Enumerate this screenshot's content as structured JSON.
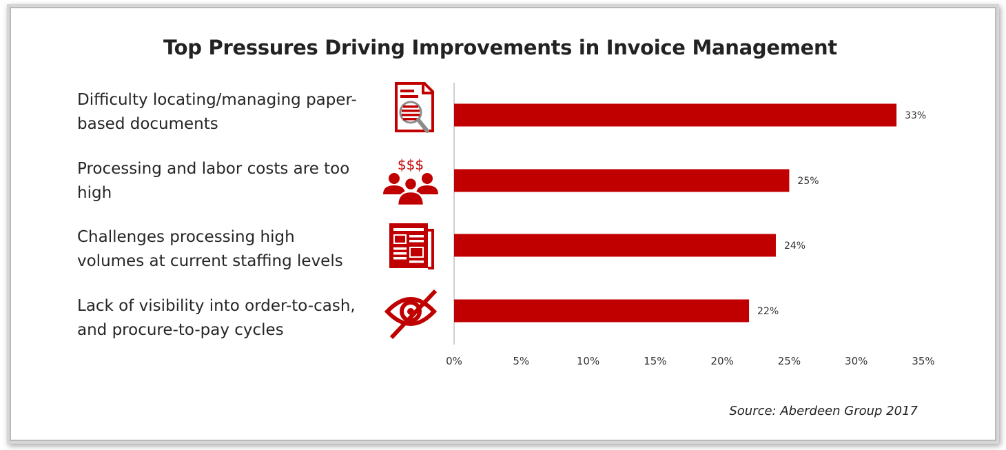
{
  "colors": {
    "bar": "#c00000",
    "icon": "#c00000",
    "axis": "#d0d0d0",
    "text": "#262626"
  },
  "icons": [
    "document-search-icon",
    "people-cost-icon",
    "newspaper-icon",
    "eye-slash-icon"
  ],
  "source": "Source: Aberdeen Group 2017",
  "chart_data": {
    "type": "bar",
    "orientation": "horizontal",
    "title": "Top Pressures Driving Improvements in Invoice Management",
    "categories": [
      "Difficulty locating/managing paper-based documents",
      "Processing and labor costs are too high",
      "Challenges processing high volumes at current staffing levels",
      "Lack of visibility into order-to-cash, and procure-to-pay cycles"
    ],
    "category_lines": [
      [
        "Difficulty locating/managing paper-",
        "based documents"
      ],
      [
        "Processing and labor costs are too",
        "high"
      ],
      [
        "Challenges processing high",
        "volumes at current staffing levels"
      ],
      [
        "Lack of visibility into order-to-cash,",
        "and procure-to-pay cycles"
      ]
    ],
    "values": [
      33,
      25,
      24,
      22
    ],
    "data_labels": [
      "33%",
      "25%",
      "24%",
      "22%"
    ],
    "xlim": [
      0,
      35
    ],
    "x_ticks": [
      0,
      5,
      10,
      15,
      20,
      25,
      30,
      35
    ],
    "x_tick_labels": [
      "0%",
      "5%",
      "10%",
      "15%",
      "20%",
      "25%",
      "30%",
      "35%"
    ],
    "grid": false,
    "legend": "none"
  }
}
